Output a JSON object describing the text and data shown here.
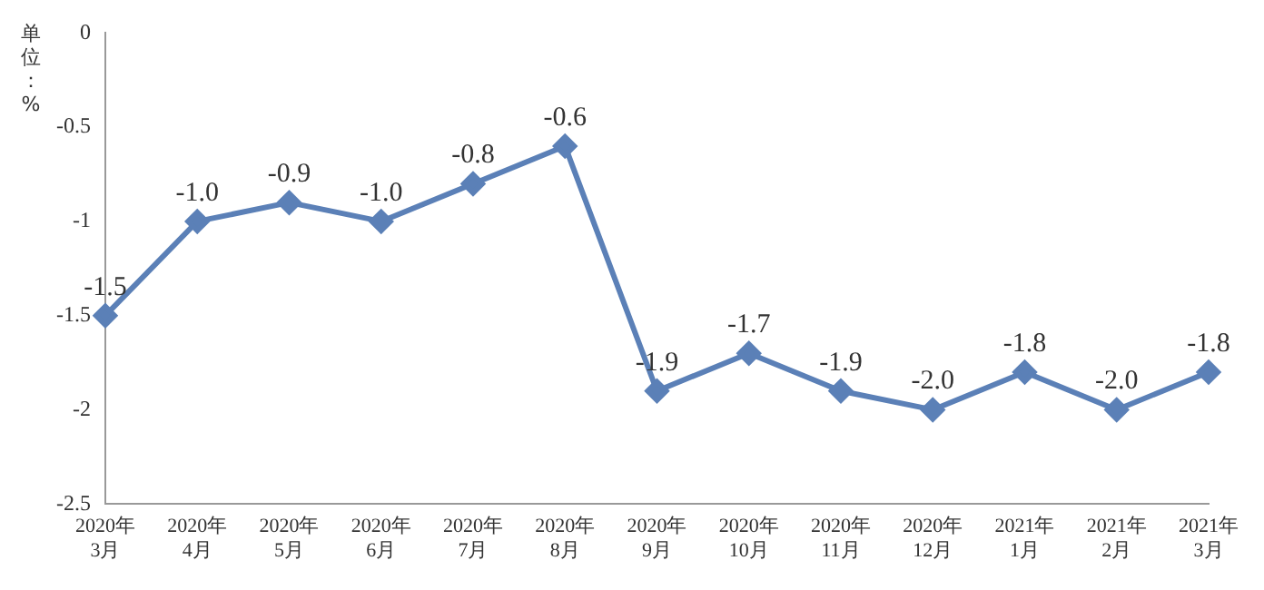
{
  "chart_data": {
    "type": "line",
    "ylabel": "单位：%",
    "categories": [
      "2020年3月",
      "2020年4月",
      "2020年5月",
      "2020年6月",
      "2020年7月",
      "2020年8月",
      "2020年9月",
      "2020年10月",
      "2020年11月",
      "2020年12月",
      "2021年1月",
      "2021年2月",
      "2021年3月"
    ],
    "series": [
      {
        "color": "#5b80b7",
        "values": [
          -1.5,
          -1.0,
          -0.9,
          -1.0,
          -0.8,
          -0.6,
          -1.9,
          -1.7,
          -1.9,
          -2.0,
          -1.8,
          -2.0,
          -1.8
        ],
        "value_labels": [
          "-1.5",
          "-1.0",
          "-0.9",
          "-1.0",
          "-0.8",
          "-0.6",
          "-1.9",
          "-1.7",
          "-1.9",
          "-2.0",
          "-1.8",
          "-2.0",
          "-1.8"
        ]
      }
    ],
    "ylim": [
      -2.5,
      0
    ],
    "yticks": [
      0,
      -0.5,
      -1,
      -1.5,
      -2,
      -2.5
    ],
    "grid": false,
    "legend": false,
    "marker": "diamond",
    "line_style": "solid"
  }
}
